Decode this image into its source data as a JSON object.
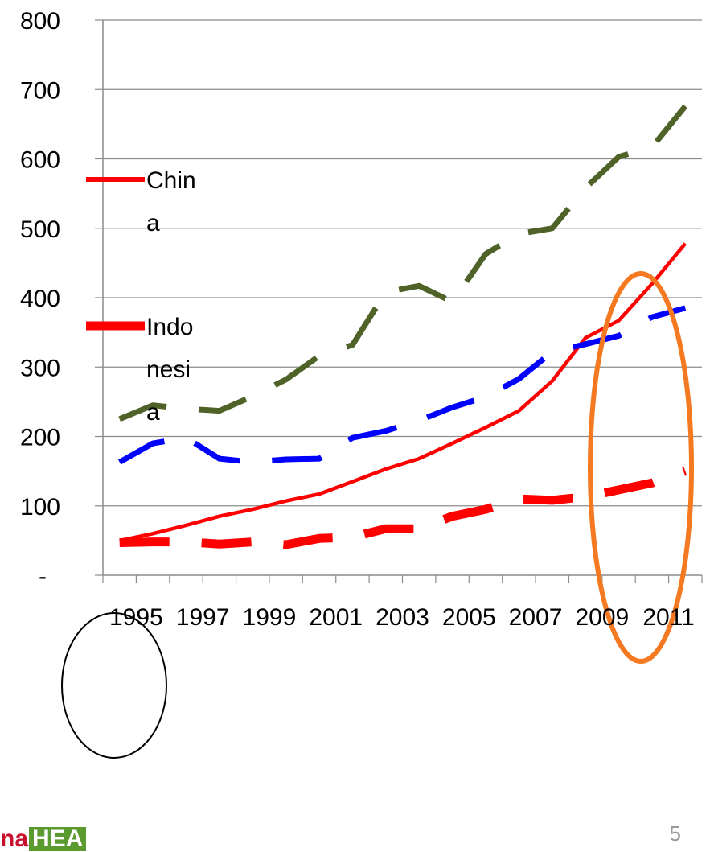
{
  "chart_data": {
    "type": "line",
    "categories": [
      "1995",
      "1996",
      "1997",
      "1998",
      "1999",
      "2000",
      "2001",
      "2002",
      "2003",
      "2004",
      "2005",
      "2006",
      "2007",
      "2008",
      "2009",
      "2010",
      "2011",
      "2012"
    ],
    "x_tick_labels": [
      "1995",
      "1997",
      "1999",
      "2001",
      "2003",
      "2005",
      "2007",
      "2009",
      "2011"
    ],
    "y_tick_labels": [
      "-",
      "100",
      "200",
      "300",
      "400",
      "500",
      "600",
      "700",
      "800"
    ],
    "ylim": [
      0,
      800
    ],
    "grid": "horizontal",
    "legend_position": "left",
    "series": [
      {
        "name": "China",
        "color": "#ff0000",
        "style": "solid",
        "values": [
          50,
          60,
          72,
          85,
          95,
          107,
          117,
          135,
          153,
          168,
          190,
          213,
          237,
          280,
          342,
          367,
          420,
          478
        ]
      },
      {
        "name": "Indonesia",
        "color": "#ff0000",
        "style": "dash-thick",
        "values": [
          47,
          48,
          48,
          45,
          48,
          44,
          53,
          55,
          67,
          67,
          85,
          95,
          110,
          108,
          113,
          123,
          133,
          150
        ]
      },
      {
        "name": "",
        "color": "#0000ff",
        "style": "dash",
        "values": [
          163,
          190,
          198,
          168,
          163,
          167,
          168,
          198,
          208,
          223,
          242,
          257,
          283,
          322,
          333,
          345,
          372,
          385
        ]
      },
      {
        "name": "",
        "color": "#4f6228",
        "style": "dash",
        "values": [
          225,
          245,
          240,
          237,
          258,
          282,
          316,
          332,
          408,
          417,
          394,
          463,
          492,
          500,
          558,
          603,
          617,
          676
        ]
      }
    ],
    "legend": [
      {
        "series": "China",
        "lines": [
          "Chin",
          "a"
        ]
      },
      {
        "series": "Indonesia",
        "lines": [
          "Indo",
          "nesi",
          "a"
        ]
      }
    ],
    "annotations": [
      {
        "type": "ellipse",
        "color": "#000000"
      },
      {
        "type": "ellipse",
        "color": "#f47920"
      }
    ]
  },
  "footer": {
    "page_number": "5",
    "logo_part1": "na",
    "logo_part2": "HEA"
  }
}
